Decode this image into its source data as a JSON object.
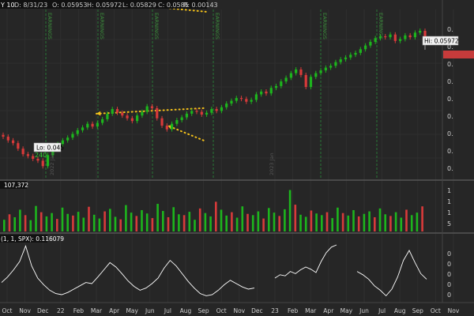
{
  "header": {
    "symbol_stub": "Y 10",
    "date": "D: 8/31/23",
    "open": "O: 0.05953",
    "high": "H: 0.05972",
    "low": "L: 0.05829",
    "close": "C: 0.0585",
    "range": "R: 0.00143"
  },
  "volume_label": "107,372",
  "study_label": "(1, 1, SPX): 0.116079",
  "callouts": {
    "hi": "Hi: 0.05972",
    "lo": "Lo: 0.045",
    "lo_sub": "240"
  },
  "earnings_markers": [
    "EARNINGS",
    "EARNINGS",
    "EARNINGS",
    "EARNINGS",
    "EARNINGS",
    "EARNINGS"
  ],
  "period_labels": [
    "2022 Jan",
    "2023 Jan"
  ],
  "right_axis_labels": [
    "0.",
    "0.",
    "0.",
    "0.",
    "0.",
    "0.",
    "0.",
    "0.",
    "0."
  ],
  "volume_axis_labels": [
    "1",
    "1",
    "1",
    "5"
  ],
  "study_axis_labels": [
    "0",
    "0",
    "0",
    "0",
    "0"
  ],
  "colors": {
    "up": "#1db51d",
    "down": "#d83a3a",
    "trend": "#f3c01a",
    "study_line": "#ffffff",
    "event_line": "#2a8a3a"
  },
  "chart_data": [
    {
      "type": "candlestick",
      "panel": "price",
      "x_ticks": [
        "Oct",
        "Nov",
        "Dec",
        "22",
        "Feb",
        "Mar",
        "Apr",
        "May",
        "Jun",
        "Jul",
        "Aug",
        "Sep",
        "Oct",
        "Nov",
        "Dec",
        "23",
        "Feb",
        "Mar",
        "Apr",
        "May",
        "Jun",
        "Jul",
        "Aug",
        "Sep",
        "Oct",
        "Nov"
      ],
      "ylim": [
        0.044,
        0.0615
      ],
      "hi": 0.05972,
      "lo": 0.045,
      "close": [
        0.0482,
        0.0478,
        0.0475,
        0.0469,
        0.0463,
        0.0461,
        0.0458,
        0.0456,
        0.045,
        0.0462,
        0.0471,
        0.0474,
        0.0478,
        0.0481,
        0.0485,
        0.0489,
        0.0492,
        0.0496,
        0.0493,
        0.0497,
        0.0501,
        0.0507,
        0.0512,
        0.0508,
        0.0505,
        0.0502,
        0.0499,
        0.0505,
        0.0509,
        0.0515,
        0.0513,
        0.0502,
        0.0494,
        0.049,
        0.0496,
        0.05,
        0.0503,
        0.0507,
        0.051,
        0.0509,
        0.0506,
        0.0508,
        0.0512,
        0.051,
        0.0514,
        0.0518,
        0.0521,
        0.0524,
        0.0523,
        0.052,
        0.0522,
        0.0528,
        0.0531,
        0.0529,
        0.0535,
        0.0537,
        0.0542,
        0.0546,
        0.0551,
        0.0555,
        0.0549,
        0.0536,
        0.0547,
        0.0551,
        0.0554,
        0.0557,
        0.0559,
        0.0563,
        0.0566,
        0.0568,
        0.0571,
        0.0573,
        0.0577,
        0.0581,
        0.0585,
        0.0589,
        0.0591,
        0.059,
        0.0593,
        0.0586,
        0.0588,
        0.0592,
        0.059,
        0.0595,
        0.0597,
        0.0585
      ],
      "trendlines": [
        {
          "from": [
            "Sep",
            0.0513
          ],
          "to": [
            "Mar",
            0.0507
          ]
        },
        {
          "from": [
            "Sep",
            0.0478
          ],
          "to": [
            "Jul",
            0.0494
          ]
        }
      ]
    },
    {
      "type": "bar",
      "panel": "volume",
      "value": 107372,
      "values": [
        28,
        41,
        34,
        52,
        39,
        27,
        61,
        46,
        36,
        44,
        30,
        57,
        42,
        38,
        47,
        33,
        59,
        40,
        31,
        48,
        54,
        35,
        29,
        63,
        45,
        37,
        51,
        43,
        32,
        66,
        49,
        34,
        58,
        41,
        39,
        47,
        28,
        55,
        44,
        36,
        71,
        52,
        38,
        46,
        33,
        60,
        42,
        39,
        48,
        31,
        56,
        45,
        37,
        53,
        99,
        64,
        40,
        35,
        50,
        43,
        39,
        46,
        32,
        57,
        44,
        38,
        51,
        36,
        42,
        48,
        34,
        55,
        41,
        37,
        46,
        33,
        52,
        39,
        45,
        60
      ],
      "ylim": [
        0,
        100
      ]
    },
    {
      "type": "line",
      "panel": "study",
      "value": 0.116079,
      "segments": [
        [
          0.32,
          0.42,
          0.55,
          0.7,
          0.98,
          0.62,
          0.4,
          0.28,
          0.18,
          0.12,
          0.1,
          0.14,
          0.2,
          0.26,
          0.32,
          0.3,
          0.42,
          0.55,
          0.68,
          0.6,
          0.48,
          0.35,
          0.25,
          0.18,
          0.22,
          0.3,
          0.4,
          0.58,
          0.72,
          0.62,
          0.48,
          0.34,
          0.22,
          0.12,
          0.08,
          0.1,
          0.18,
          0.28,
          0.36,
          0.3,
          0.24,
          0.2,
          0.22
        ],
        [
          0.4,
          0.46,
          0.44,
          0.52,
          0.48,
          0.55,
          0.6,
          0.56,
          0.5,
          0.7,
          0.86,
          0.96,
          1.0
        ],
        [
          0.52,
          0.46,
          0.38,
          0.26,
          0.18,
          0.08,
          0.2,
          0.42,
          0.72,
          0.9,
          0.68,
          0.48,
          0.38
        ]
      ],
      "ylim": [
        0,
        1
      ]
    }
  ]
}
